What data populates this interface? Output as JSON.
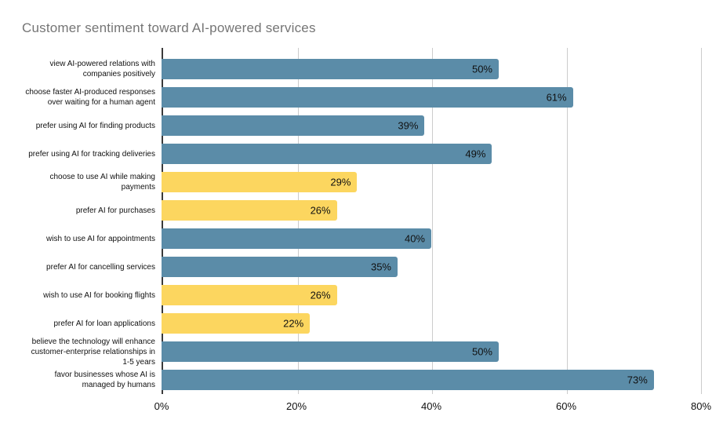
{
  "page": {
    "title": "Customer sentiment toward AI-powered services"
  },
  "colors": {
    "bar_blue": "#5b8ca8",
    "bar_yellow": "#fcd65f",
    "gridline": "#cccccc",
    "axis_line": "#3a3a3a",
    "title_text": "#757575",
    "label_text": "#111111",
    "background": "#ffffff"
  },
  "chart_data": {
    "type": "bar",
    "orientation": "horizontal",
    "title": "Customer sentiment toward AI-powered services",
    "categories": [
      "view AI-powered relations with companies positively",
      "choose faster AI-produced responses over waiting for a human agent",
      "prefer using AI for finding products",
      "prefer using AI for tracking deliveries",
      "choose to use AI while making payments",
      "prefer AI for purchases",
      "wish to use AI for appointments",
      "prefer AI for cancelling services",
      "wish to use AI for booking flights",
      "prefer AI for loan applications",
      "believe the technology will enhance customer-enterprise relationships in 1-5 years",
      "favor businesses whose AI is managed by humans"
    ],
    "values": [
      50,
      61,
      39,
      49,
      29,
      26,
      40,
      35,
      26,
      22,
      50,
      73
    ],
    "value_labels": [
      "50%",
      "61%",
      "39%",
      "49%",
      "29%",
      "26%",
      "40%",
      "35%",
      "26%",
      "22%",
      "50%",
      "73%"
    ],
    "bar_colors": [
      "blue",
      "blue",
      "blue",
      "blue",
      "yellow",
      "yellow",
      "blue",
      "blue",
      "yellow",
      "yellow",
      "blue",
      "blue"
    ],
    "xlabel": "",
    "ylabel": "",
    "xlim": [
      0,
      80
    ],
    "x_ticks": [
      {
        "value": 0,
        "label": "0%"
      },
      {
        "value": 20,
        "label": "20%"
      },
      {
        "value": 40,
        "label": "40%"
      },
      {
        "value": 60,
        "label": "60%"
      },
      {
        "value": 80,
        "label": "80%"
      }
    ],
    "grid": true,
    "legend_position": "none"
  }
}
